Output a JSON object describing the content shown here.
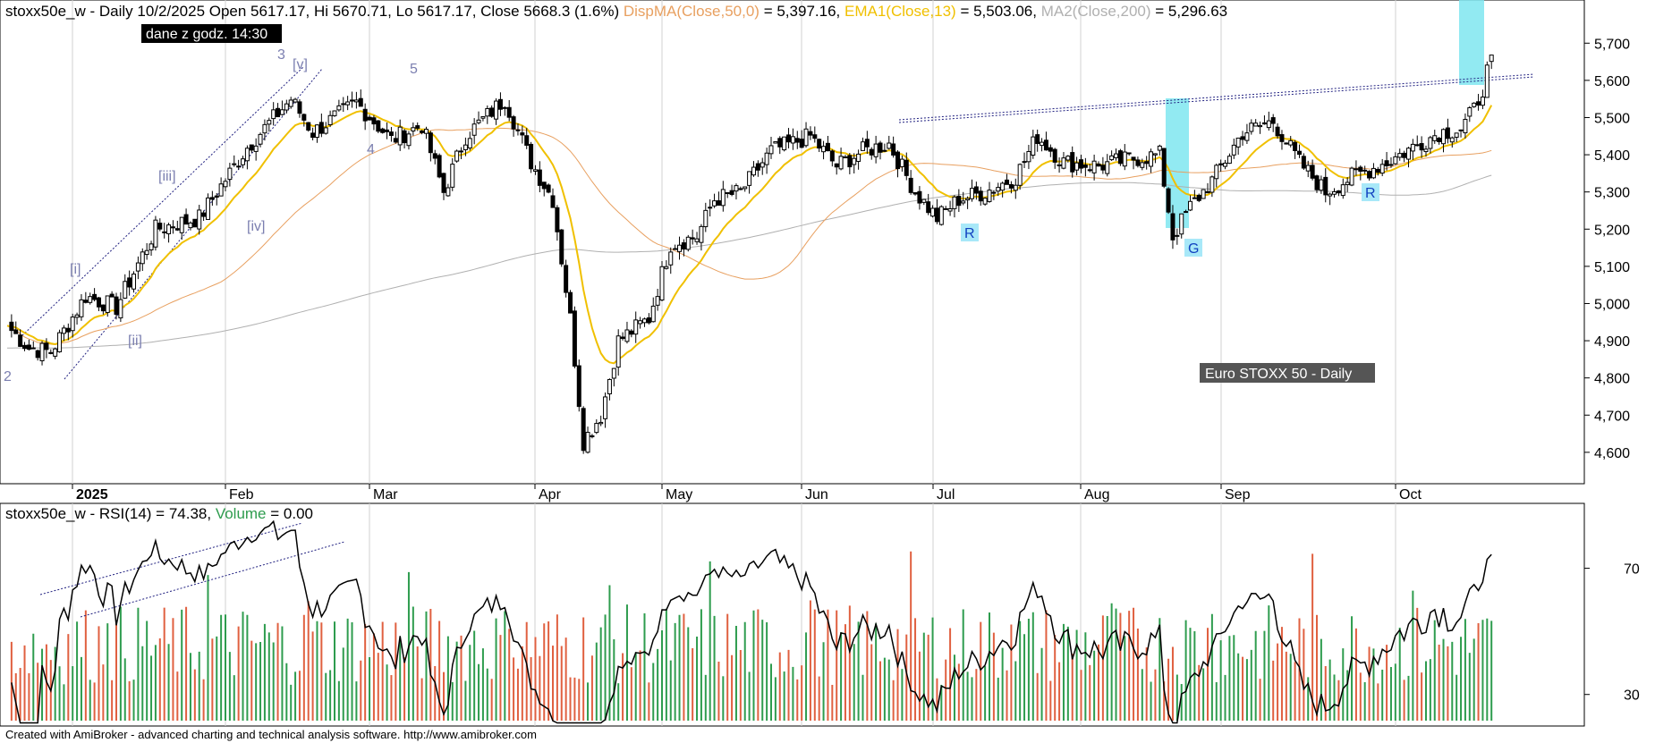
{
  "header": {
    "prefix": "stoxx50e_w - Daily 10/2/2025 Open 5617.17, Hi 5670.71, Lo 5617.17, Close 5668.3 (1.6%) ",
    "dispma": "DispMA(Close,50,0)",
    "dispma_val": " = 5,397.16, ",
    "ema": "EMA1(Close,13)",
    "ema_val": " = 5,503.06, ",
    "ma2": "MA2(Close,200)",
    "ma2_val": " = 5,296.63"
  },
  "time_badge": "dane z godz. 14:30",
  "chart_badge": "Euro STOXX 50 - Daily",
  "rsi_header": {
    "prefix": "stoxx50e_w - RSI(14) = 74.38, ",
    "volume": "Volume",
    "volume_val": " = 0.00"
  },
  "credit": "Created with AmiBroker - advanced charting and technical analysis software. http://www.amibroker.com",
  "colors": {
    "dispma": "#e8a060",
    "ema": "#f0c000",
    "ma2": "#b0b0b0",
    "volume_text": "#2e9c4e",
    "vol_up": "#2e9c4e",
    "vol_down": "#e06040",
    "highlight": "#7fe6f0",
    "wave": "#7b7fb0",
    "marker_bg": "#a8e8f8",
    "marker_text": "#1040c0",
    "trend": "#202080"
  },
  "chart_data": [
    {
      "type": "candlestick",
      "series": [
        {
          "name": "stoxx50e_w"
        },
        {
          "name": "DispMA(Close,50,0)"
        },
        {
          "name": "EMA1(Close,13)"
        },
        {
          "name": "MA2(Close,200)"
        }
      ],
      "ylim": [
        4530,
        5780
      ],
      "y_ticks": [
        "5,700",
        "5,600",
        "5,500",
        "5,400",
        "5,300",
        "5,200",
        "5,100",
        "5,000",
        "4,900",
        "4,800",
        "4,700",
        "4,600"
      ],
      "x_labels": [
        "2025",
        "Feb",
        "Mar",
        "Apr",
        "May",
        "Jun",
        "Jul",
        "Aug",
        "Sep",
        "Oct"
      ],
      "anchors": [
        {
          "x": 0,
          "close": 4940
        },
        {
          "x": 5,
          "close": 4880
        },
        {
          "x": 10,
          "close": 4870
        },
        {
          "x": 18,
          "close": 5020
        },
        {
          "x": 25,
          "close": 4990
        },
        {
          "x": 34,
          "close": 5200
        },
        {
          "x": 44,
          "close": 5230
        },
        {
          "x": 55,
          "close": 5420
        },
        {
          "x": 65,
          "close": 5550
        },
        {
          "x": 70,
          "close": 5460
        },
        {
          "x": 80,
          "close": 5540
        },
        {
          "x": 88,
          "close": 5440
        },
        {
          "x": 95,
          "close": 5480
        },
        {
          "x": 100,
          "close": 5300
        },
        {
          "x": 105,
          "close": 5450
        },
        {
          "x": 114,
          "close": 5550
        },
        {
          "x": 120,
          "close": 5380
        },
        {
          "x": 125,
          "close": 5280
        },
        {
          "x": 129,
          "close": 4960
        },
        {
          "x": 132,
          "close": 4630
        },
        {
          "x": 136,
          "close": 4700
        },
        {
          "x": 140,
          "close": 4900
        },
        {
          "x": 147,
          "close": 4960
        },
        {
          "x": 152,
          "close": 5160
        },
        {
          "x": 158,
          "close": 5180
        },
        {
          "x": 162,
          "close": 5280
        },
        {
          "x": 168,
          "close": 5300
        },
        {
          "x": 175,
          "close": 5410
        },
        {
          "x": 184,
          "close": 5450
        },
        {
          "x": 190,
          "close": 5370
        },
        {
          "x": 196,
          "close": 5410
        },
        {
          "x": 202,
          "close": 5430
        },
        {
          "x": 208,
          "close": 5300
        },
        {
          "x": 213,
          "close": 5230
        },
        {
          "x": 218,
          "close": 5280
        },
        {
          "x": 224,
          "close": 5300
        },
        {
          "x": 231,
          "close": 5340
        },
        {
          "x": 236,
          "close": 5450
        },
        {
          "x": 242,
          "close": 5380
        },
        {
          "x": 250,
          "close": 5370
        },
        {
          "x": 258,
          "close": 5390
        },
        {
          "x": 264,
          "close": 5400
        },
        {
          "x": 267,
          "close": 5180
        },
        {
          "x": 271,
          "close": 5260
        },
        {
          "x": 276,
          "close": 5330
        },
        {
          "x": 283,
          "close": 5460
        },
        {
          "x": 290,
          "close": 5490
        },
        {
          "x": 296,
          "close": 5380
        },
        {
          "x": 302,
          "close": 5300
        },
        {
          "x": 308,
          "close": 5340
        },
        {
          "x": 316,
          "close": 5380
        },
        {
          "x": 322,
          "close": 5420
        },
        {
          "x": 328,
          "close": 5460
        },
        {
          "x": 333,
          "close": 5470
        },
        {
          "x": 336,
          "close": 5520
        },
        {
          "x": 338,
          "close": 5580
        },
        {
          "x": 340,
          "close": 5668
        }
      ],
      "annotations": [
        "2",
        "[i]",
        "[ii]",
        "[iii]",
        "[iv]",
        "3",
        "[v]",
        "4",
        "5",
        "R",
        "G",
        "R"
      ]
    },
    {
      "type": "line",
      "series": [
        {
          "name": "RSI(14)",
          "last": 74.38
        },
        {
          "name": "Volume",
          "last": 0.0
        }
      ],
      "ylim": [
        20,
        90
      ],
      "y_ticks": [
        "70",
        "30"
      ]
    }
  ]
}
